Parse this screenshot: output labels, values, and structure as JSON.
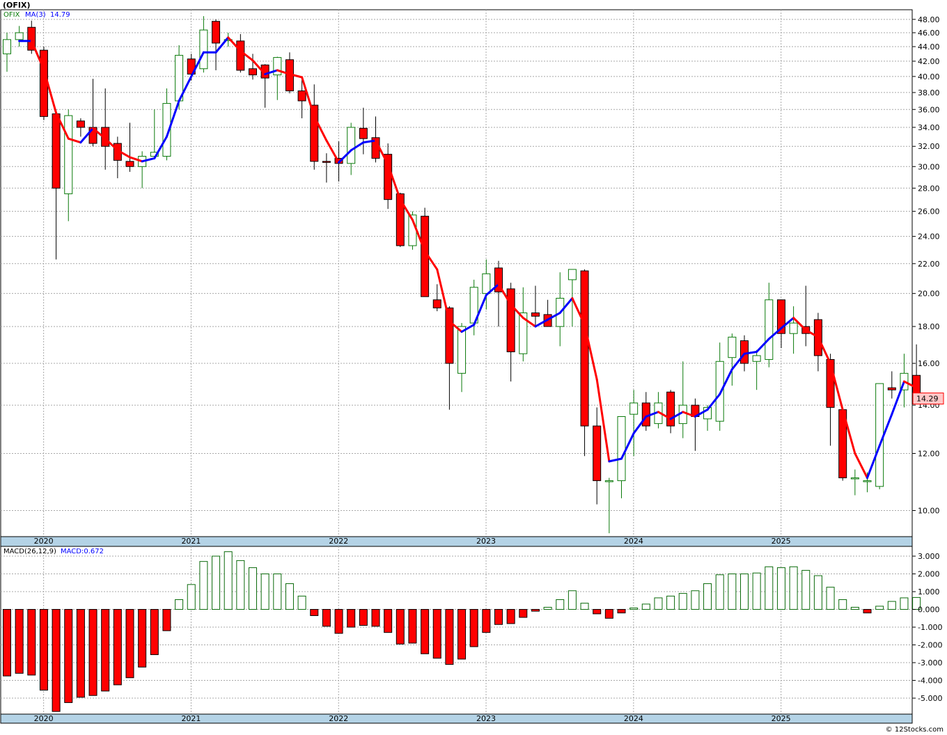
{
  "header": {
    "title": "(OFIX)",
    "credit": "© 12Stocks.com"
  },
  "price_panel": {
    "legend_symbol": "OFIX",
    "legend_ma": "MA(3)",
    "legend_ma_value": "14.79",
    "last_price_label": "14.29",
    "colors": {
      "up": "#0a7a0a",
      "down": "#ff0000",
      "ma_up": "#0000ff",
      "ma_down": "#ff0000",
      "badge_bg": "#ffc8c8"
    }
  },
  "macd_panel": {
    "legend_label": "MACD(26,12,9)",
    "legend_value": "MACD:0.672",
    "colors": {
      "positive": "#0a6a0a",
      "negative": "#ff0000"
    }
  },
  "chart_data": [
    {
      "type": "candlestick",
      "title": "(OFIX)",
      "interval": "monthly",
      "y_scale": "log",
      "ylim": [
        9.2,
        49.5
      ],
      "y_ticks": [
        "48.00",
        "46.00",
        "44.00",
        "42.00",
        "40.00",
        "38.00",
        "36.00",
        "34.00",
        "32.00",
        "30.00",
        "28.00",
        "26.00",
        "24.00",
        "22.00",
        "20.00",
        "18.00",
        "16.00",
        "14.00",
        "12.00",
        "10.00"
      ],
      "x_ticks": [
        "2020",
        "2021",
        "2022",
        "2023",
        "2024",
        "2025"
      ],
      "grid": true,
      "legend": "top-left",
      "series": [
        {
          "name": "OFIX",
          "ohlc": [
            [
              43.0,
              46.0,
              40.6,
              45.0
            ],
            [
              45.0,
              47.0,
              44.0,
              46.0
            ],
            [
              46.8,
              47.8,
              43.0,
              43.5
            ],
            [
              43.5,
              44.0,
              34.8,
              35.2
            ],
            [
              35.5,
              36.0,
              22.3,
              28.0
            ],
            [
              27.5,
              36.0,
              25.2,
              35.3
            ],
            [
              34.7,
              35.0,
              33.0,
              34.0
            ],
            [
              34.0,
              39.7,
              32.0,
              32.3
            ],
            [
              34.0,
              38.5,
              29.7,
              32.0
            ],
            [
              32.3,
              33.0,
              28.9,
              30.6
            ],
            [
              30.5,
              34.5,
              29.5,
              30.0
            ],
            [
              30.0,
              31.5,
              28.0,
              31.0
            ],
            [
              31.0,
              36.0,
              30.8,
              31.4
            ],
            [
              31.0,
              38.5,
              30.6,
              36.7
            ],
            [
              37.0,
              44.2,
              36.0,
              42.8
            ],
            [
              42.3,
              43.0,
              39.5,
              40.3
            ],
            [
              41.0,
              48.5,
              40.5,
              46.4
            ],
            [
              47.7,
              48.0,
              40.8,
              44.5
            ],
            [
              45.0,
              46.0,
              44.0,
              45.0
            ],
            [
              44.8,
              45.8,
              40.5,
              40.8
            ],
            [
              41.0,
              43.0,
              39.6,
              40.2
            ],
            [
              41.5,
              41.6,
              36.2,
              39.8
            ],
            [
              40.2,
              42.6,
              37.1,
              42.5
            ],
            [
              42.2,
              43.2,
              37.9,
              38.2
            ],
            [
              38.2,
              39.8,
              35.0,
              37.0
            ],
            [
              36.5,
              39.0,
              29.7,
              30.5
            ],
            [
              30.5,
              31.3,
              28.5,
              30.4
            ],
            [
              30.8,
              32.5,
              28.6,
              30.3
            ],
            [
              30.3,
              34.5,
              29.2,
              34.0
            ],
            [
              33.9,
              36.2,
              31.2,
              32.8
            ],
            [
              32.9,
              35.2,
              30.4,
              30.8
            ],
            [
              31.2,
              32.3,
              26.2,
              27.0
            ],
            [
              27.5,
              27.6,
              23.2,
              23.3
            ],
            [
              23.3,
              26.0,
              23.0,
              25.7
            ],
            [
              25.6,
              26.3,
              19.8,
              19.8
            ],
            [
              19.6,
              20.6,
              18.9,
              19.1
            ],
            [
              19.1,
              19.2,
              13.8,
              16.0
            ],
            [
              15.5,
              18.2,
              14.6,
              18.0
            ],
            [
              18.2,
              20.9,
              17.5,
              20.4
            ],
            [
              20.0,
              22.3,
              19.0,
              21.3
            ],
            [
              21.7,
              22.2,
              18.0,
              20.1
            ],
            [
              20.3,
              20.7,
              15.1,
              16.6
            ],
            [
              16.5,
              20.4,
              16.1,
              18.8
            ],
            [
              18.8,
              20.5,
              18.0,
              18.6
            ],
            [
              18.7,
              19.6,
              18.0,
              18.0
            ],
            [
              18.0,
              21.4,
              16.9,
              19.7
            ],
            [
              20.9,
              21.6,
              18.0,
              21.6
            ],
            [
              21.5,
              21.6,
              11.9,
              13.1
            ],
            [
              13.1,
              13.9,
              10.2,
              11.0
            ],
            [
              11.0,
              11.1,
              9.3,
              11.0
            ],
            [
              11.0,
              13.5,
              10.4,
              13.5
            ],
            [
              13.6,
              14.7,
              11.9,
              14.1
            ],
            [
              14.1,
              14.6,
              12.9,
              13.1
            ],
            [
              13.2,
              14.6,
              13.0,
              14.1
            ],
            [
              14.6,
              14.7,
              12.8,
              13.1
            ],
            [
              13.2,
              16.1,
              12.6,
              14.0
            ],
            [
              14.0,
              14.3,
              12.1,
              13.5
            ],
            [
              13.4,
              14.0,
              12.9,
              13.9
            ],
            [
              13.3,
              17.1,
              12.9,
              16.1
            ],
            [
              16.3,
              17.6,
              14.9,
              17.4
            ],
            [
              17.2,
              17.5,
              15.6,
              16.0
            ],
            [
              16.1,
              16.7,
              14.7,
              16.4
            ],
            [
              16.2,
              20.7,
              15.8,
              19.6
            ],
            [
              19.6,
              19.6,
              16.8,
              17.6
            ],
            [
              17.6,
              19.2,
              16.5,
              18.2
            ],
            [
              18.0,
              20.5,
              16.9,
              17.6
            ],
            [
              18.4,
              18.8,
              15.6,
              16.4
            ],
            [
              16.2,
              16.5,
              12.3,
              13.9
            ],
            [
              13.8,
              13.9,
              11.0,
              11.1
            ],
            [
              11.1,
              11.4,
              10.5,
              11.1
            ],
            [
              11.0,
              11.3,
              10.6,
              11.0
            ],
            [
              10.8,
              15.0,
              10.7,
              15.0
            ],
            [
              14.8,
              15.6,
              14.3,
              14.7
            ],
            [
              14.7,
              16.5,
              13.9,
              15.5
            ],
            [
              15.4,
              17.0,
              14.2,
              14.3
            ]
          ]
        },
        {
          "name": "MA(3)",
          "values": [
            null,
            44.8,
            44.8,
            40.9,
            35.6,
            32.8,
            32.4,
            33.9,
            32.8,
            31.6,
            30.9,
            30.5,
            30.8,
            33.0,
            37.0,
            40.0,
            43.2,
            43.2,
            45.3,
            43.4,
            42.1,
            40.3,
            40.8,
            40.3,
            39.9,
            35.2,
            32.6,
            30.4,
            31.6,
            32.4,
            32.6,
            30.2,
            27.0,
            25.3,
            22.9,
            21.6,
            18.3,
            17.7,
            18.1,
            19.9,
            20.6,
            19.3,
            18.5,
            18.0,
            18.4,
            18.8,
            19.7,
            18.1,
            15.2,
            11.7,
            11.8,
            12.8,
            13.5,
            13.7,
            13.4,
            13.7,
            13.5,
            13.8,
            14.5,
            15.7,
            16.5,
            16.6,
            17.3,
            17.9,
            18.5,
            17.8,
            17.4,
            16.0,
            13.8,
            12.0,
            11.1,
            12.3,
            13.6,
            15.1,
            14.8
          ]
        }
      ]
    },
    {
      "type": "bar",
      "title": "MACD(26,12,9)",
      "ylim": [
        -5.9,
        3.55
      ],
      "y_ticks": [
        "3.000",
        "2.000",
        "1.000",
        "0.000",
        "-1.000",
        "-2.000",
        "-3.000",
        "-4.000",
        "-5.000"
      ],
      "x_ticks": [
        "2020",
        "2021",
        "2022",
        "2023",
        "2024",
        "2025"
      ],
      "grid": true,
      "series": [
        {
          "name": "MACD",
          "values": [
            -3.75,
            -3.6,
            -3.7,
            -4.55,
            -5.75,
            -5.25,
            -4.95,
            -4.85,
            -4.6,
            -4.25,
            -3.85,
            -3.25,
            -2.55,
            -1.2,
            0.55,
            1.4,
            2.7,
            3.0,
            3.25,
            2.75,
            2.35,
            2.0,
            2.0,
            1.45,
            0.75,
            -0.35,
            -0.95,
            -1.35,
            -1.0,
            -0.9,
            -0.95,
            -1.3,
            -1.95,
            -1.9,
            -2.5,
            -2.75,
            -3.1,
            -2.8,
            -2.1,
            -1.3,
            -0.85,
            -0.8,
            -0.45,
            -0.1,
            0.12,
            0.55,
            1.05,
            0.35,
            -0.25,
            -0.5,
            -0.2,
            0.08,
            0.3,
            0.65,
            0.75,
            0.9,
            1.05,
            1.45,
            1.95,
            2.0,
            2.0,
            2.05,
            2.4,
            2.35,
            2.4,
            2.2,
            1.9,
            1.25,
            0.55,
            0.12,
            -0.2,
            0.18,
            0.45,
            0.65,
            0.672
          ]
        }
      ]
    }
  ]
}
